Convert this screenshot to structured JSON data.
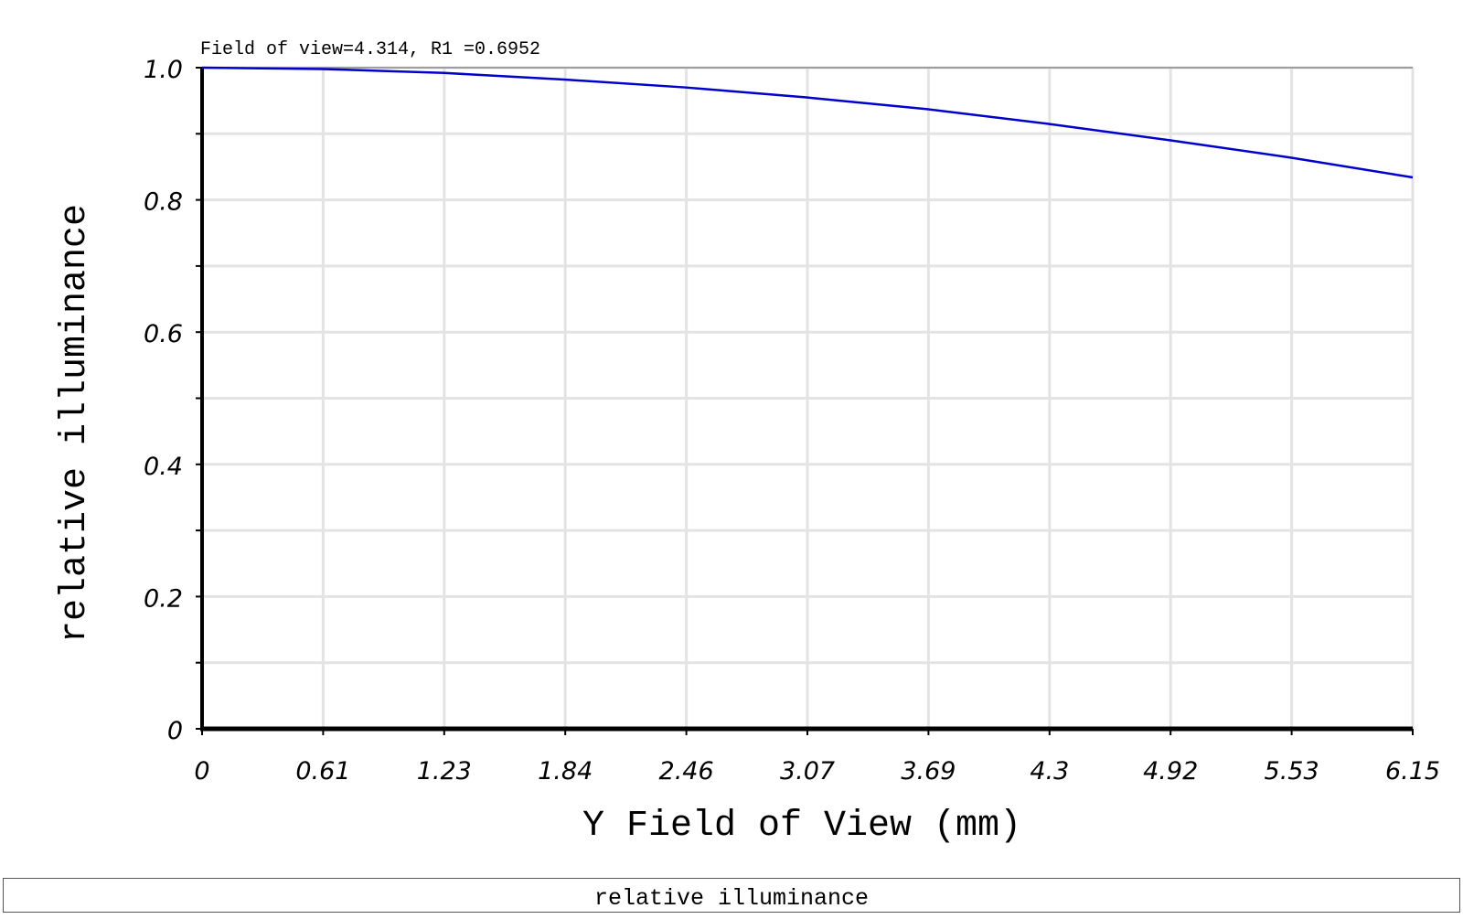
{
  "chart_data": {
    "type": "line",
    "subtitle": "Field of view=4.314, R1 =0.6952",
    "xlabel": "Y Field of View (mm)",
    "ylabel": "relative illuminance",
    "xlim": [
      0,
      6.15
    ],
    "ylim": [
      0,
      1.0
    ],
    "x_ticks": [
      "0",
      "0.61",
      "1.23",
      "1.84",
      "2.46",
      "3.07",
      "3.69",
      "4.3",
      "4.92",
      "5.53",
      "6.15"
    ],
    "y_ticks": [
      {
        "value": 0,
        "label": "0"
      },
      {
        "value": 0.2,
        "label": "0.2"
      },
      {
        "value": 0.4,
        "label": "0.4"
      },
      {
        "value": 0.6,
        "label": "0.6"
      },
      {
        "value": 0.8,
        "label": "0.8"
      },
      {
        "value": 1.0,
        "label": "1.0"
      }
    ],
    "grid": true,
    "series": [
      {
        "color": "#0000cc",
        "x": [
          0,
          0.61,
          1.23,
          1.84,
          2.46,
          3.07,
          3.69,
          4.3,
          4.92,
          5.53,
          6.15
        ],
        "y": [
          1.0,
          0.998,
          0.992,
          0.982,
          0.97,
          0.955,
          0.937,
          0.915,
          0.89,
          0.864,
          0.834
        ]
      }
    ]
  },
  "footer": {
    "label": "relative illuminance"
  }
}
